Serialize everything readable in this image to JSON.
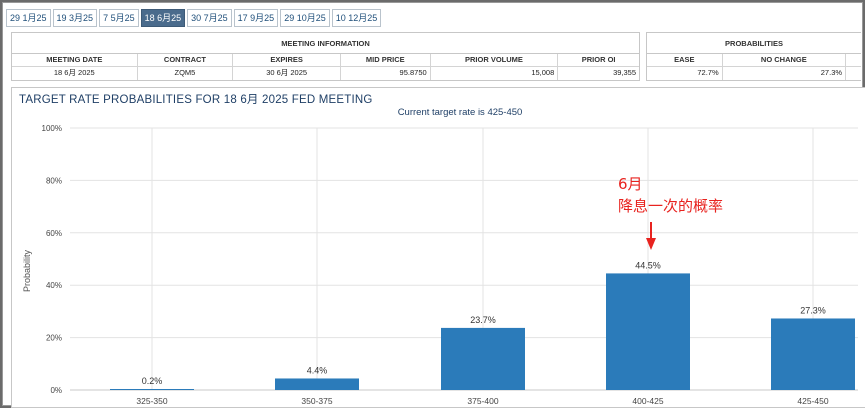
{
  "tabs": [
    "29 1月25",
    "19 3月25",
    "7 5月25",
    "18 6月25",
    "30 7月25",
    "17 9月25",
    "29 10月25",
    "10 12月25"
  ],
  "active_tab_index": 3,
  "meeting_info": {
    "title": "MEETING INFORMATION",
    "columns": [
      "MEETING DATE",
      "CONTRACT",
      "EXPIRES",
      "MID PRICE",
      "PRIOR VOLUME",
      "PRIOR OI"
    ],
    "row": [
      "18 6月 2025",
      "ZQM5",
      "30 6月 2025",
      "95.8750",
      "15,008",
      "39,355"
    ]
  },
  "probabilities": {
    "title": "PROBABILITIES",
    "columns": [
      "EASE",
      "NO CHANGE"
    ],
    "row": [
      "72.7%",
      "27.3%"
    ]
  },
  "chart": {
    "title": "TARGET RATE PROBABILITIES FOR 18 6月 2025 FED MEETING",
    "subtitle": "Current target rate is 425-450"
  },
  "chart_data": {
    "type": "bar",
    "title": "TARGET RATE PROBABILITIES FOR 18 6月 2025 FED MEETING",
    "subtitle": "Current target rate is 425-450",
    "xlabel": "",
    "ylabel": "Probability",
    "categories": [
      "325-350",
      "350-375",
      "375-400",
      "400-425",
      "425-450"
    ],
    "values": [
      0.2,
      4.4,
      23.7,
      44.5,
      27.3
    ],
    "value_labels": [
      "0.2%",
      "4.4%",
      "23.7%",
      "44.5%",
      "27.3%"
    ],
    "ylim": [
      0,
      100
    ],
    "yticks": [
      "0%",
      "20%",
      "40%",
      "60%",
      "80%",
      "100%"
    ],
    "ytick_values": [
      0,
      20,
      40,
      60,
      80,
      100
    ],
    "grid": true,
    "bar_color": "#2b7bba"
  },
  "annotation": {
    "line1": "6月",
    "line2": "降息一次的概率",
    "color": "#e8231f"
  }
}
